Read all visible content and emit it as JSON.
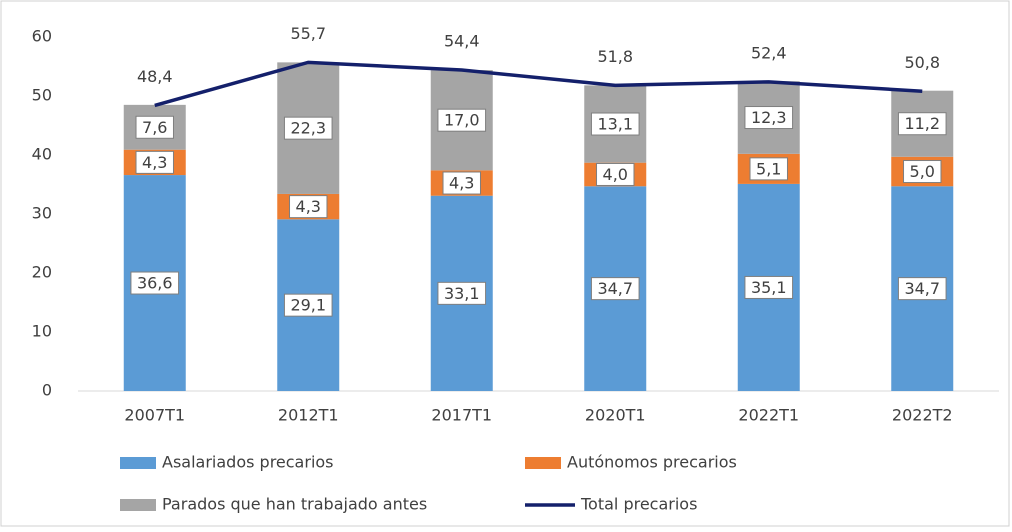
{
  "chart_data": {
    "type": "bar",
    "stacked": true,
    "categories": [
      "2007T1",
      "2012T1",
      "2017T1",
      "2020T1",
      "2022T1",
      "2022T2"
    ],
    "series": [
      {
        "name": "Asalariados precarios",
        "color": "#5b9bd5",
        "values": [
          36.6,
          29.1,
          33.1,
          34.7,
          35.1,
          34.7
        ],
        "value_labels": [
          "36,6",
          "29,1",
          "33,1",
          "34,7",
          "35,1",
          "34,7"
        ]
      },
      {
        "name": "Autónomos precarios",
        "color": "#ed7d31",
        "values": [
          4.3,
          4.3,
          4.3,
          4.0,
          5.1,
          5.0
        ],
        "value_labels": [
          "4,3",
          "4,3",
          "4,3",
          "4,0",
          "5,1",
          "5,0"
        ]
      },
      {
        "name": "Parados que han trabajado antes",
        "color": "#a5a5a5",
        "values": [
          7.6,
          22.3,
          17.0,
          13.1,
          12.3,
          11.2
        ],
        "value_labels": [
          "7,6",
          "22,3",
          "17,0",
          "13,1",
          "12,3",
          "11,2"
        ]
      },
      {
        "name": "Total precarios",
        "type": "line",
        "color": "#14206b",
        "values": [
          48.4,
          55.7,
          54.4,
          51.8,
          52.4,
          50.8
        ],
        "value_labels": [
          "48,4",
          "55,7",
          "54,4",
          "51,8",
          "52,4",
          "50,8"
        ]
      }
    ],
    "ylim": [
      0,
      60
    ],
    "yticks": [
      0,
      10,
      20,
      30,
      40,
      50,
      60
    ],
    "grid": false,
    "legend": "bottom"
  }
}
